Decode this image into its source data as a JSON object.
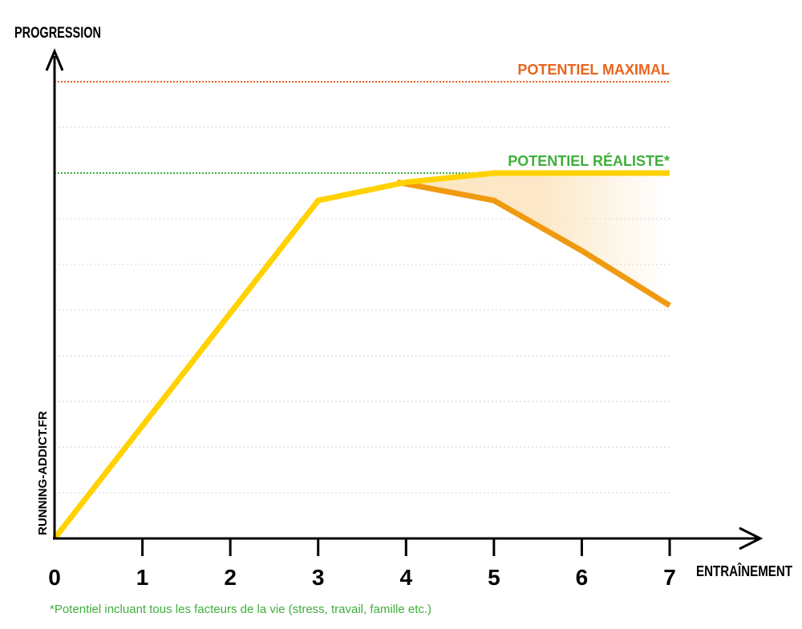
{
  "chart_data": {
    "type": "line",
    "ylabel": "PROGRESSION",
    "xlabel": "ENTRAÎNEMENT",
    "x_ticks": [
      "0",
      "1",
      "2",
      "3",
      "4",
      "5",
      "6",
      "7"
    ],
    "xlim": [
      0,
      7
    ],
    "ylim": [
      0,
      100
    ],
    "grid": true,
    "series": [
      {
        "id": "progression",
        "color": "#ffd200",
        "x": [
          0,
          3,
          4,
          5,
          6,
          7
        ],
        "y": [
          0,
          74,
          78,
          80,
          80,
          80
        ]
      },
      {
        "id": "decline",
        "color": "#f09a10",
        "x": [
          3.9,
          5,
          6,
          7
        ],
        "y": [
          78,
          74,
          63,
          51
        ]
      }
    ],
    "reference_lines": [
      {
        "label": "POTENTIEL MAXIMAL",
        "y": 100,
        "color": "#e8651c"
      },
      {
        "label": "POTENTIEL RÉALISTE*",
        "y": 80,
        "color": "#3fae3a"
      }
    ],
    "gap_fill_color": "#fce6c2"
  },
  "watermark": "RUNNING-ADDICT.FR",
  "footnote": "*Potentiel incluant tous les facteurs de la vie (stress, travail, famille etc.)",
  "colors": {
    "axis": "#000000",
    "grid": "#d0d0d0",
    "footnote": "#3fae3a"
  }
}
